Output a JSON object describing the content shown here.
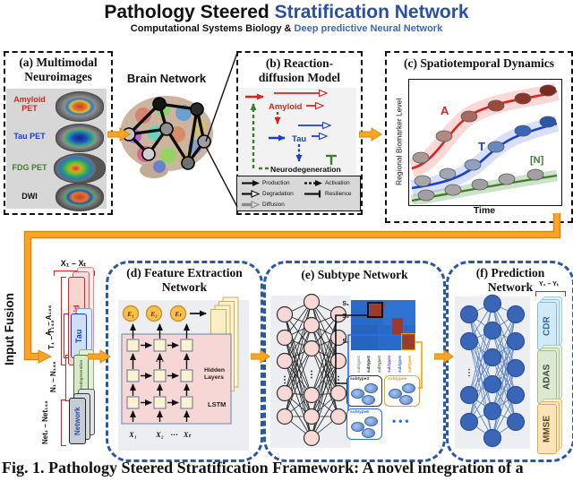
{
  "header": {
    "title_black": "Pathology Steered ",
    "title_blue": "Stratification Network",
    "subtitle_black": "Computational Systems Biology & ",
    "subtitle_blue": "Deep predictive Neural Network"
  },
  "theme": {
    "flow_arrow_color": "#fda428",
    "panel_dash_blue": "#2b57a7",
    "title_blue": "#2b4fa3"
  },
  "panel_a": {
    "title_line1": "(a) Multimodal",
    "title_line2": "Neuroimages",
    "modalities": [
      {
        "label": "Amyloid PET",
        "color": "#e02020"
      },
      {
        "label": "Tau PET",
        "color": "#1a3fd4"
      },
      {
        "label": "FDG PET",
        "color": "#3f7d2c"
      },
      {
        "label": "DWI",
        "color": "#111111"
      }
    ]
  },
  "brain_network": {
    "label": "Brain Network"
  },
  "panel_b": {
    "title_line1": "(b) Reaction-",
    "title_line2": "diffusion Model",
    "amyloid": "Amyloid",
    "tau": "Tau",
    "neuro": "Neurodegeneration",
    "legend": {
      "production": "Production",
      "degradation": "Degradation",
      "diffusion": "Diffusion",
      "activation": "Activation",
      "resilience": "Resilience"
    }
  },
  "panel_c": {
    "title": "(c) Spatiotemporal Dynamics",
    "ylabel": "Regional Biomarker Level",
    "xlabel": "Time",
    "curve_a": "A",
    "curve_t": "T",
    "curve_n": "[N]",
    "colors": {
      "a": "#e02020",
      "t": "#1a3fd4",
      "n": "#3f7d2c"
    }
  },
  "input_fusion": {
    "label": "Input Fusion",
    "x_range": "X₁ – Xₜ",
    "stack": [
      {
        "label": "Amyloid",
        "range": "A₁ – A₁₄₈"
      },
      {
        "label": "Tau",
        "range": "T₁ – T₁₄₈"
      },
      {
        "label": "Neurodegeneration",
        "range": "N₁ – N₁₄₈"
      },
      {
        "label": "Network",
        "range": "Net₁ – Net₁₄₈"
      }
    ]
  },
  "panel_d": {
    "title_line1": "(d) Feature Extraction",
    "title_line2": "Network",
    "encoders": [
      "E₁",
      "E₂",
      "Eₜ"
    ],
    "dots": "⋯",
    "hidden_label_1": "Hidden",
    "hidden_label_2": "Layers",
    "lstm_label": "LSTM",
    "inputs": [
      "X₁",
      "X₂",
      "⋯",
      "Xₜ"
    ]
  },
  "panel_e": {
    "title": "(e) Subtype Network",
    "matrix_rows": [
      "S₁",
      "S₂",
      "Sₙ"
    ],
    "vdots": "⋮",
    "subtype_ticks": [
      {
        "label": "subtype1",
        "color": "#8a8f98"
      },
      {
        "label": "subtype2",
        "color": "#202124"
      },
      {
        "label": "subtype3",
        "color": "#3f7d2c"
      },
      {
        "label": "subtype4",
        "color": "#7b3ff2"
      },
      {
        "label": "subtype5",
        "color": "#2b6cf0"
      },
      {
        "label": "subtype6",
        "color": "#f59f00"
      }
    ],
    "groups": [
      {
        "label": "subtype3",
        "color": "#333333"
      },
      {
        "label": "subtype5",
        "color": "#f59f00"
      },
      {
        "label": "subtype6",
        "color": "#2b6cf0"
      }
    ],
    "more_dots": "•••"
  },
  "panel_f": {
    "title_line1": "(f) Prediction",
    "title_line2": "Network",
    "y_range": "Y₁ – Yₜ",
    "vdots": "⋮",
    "outputs": [
      {
        "label": "CDR",
        "color": "#2b6cb0"
      },
      {
        "label": "ADAS",
        "color": "#3c4a3a"
      },
      {
        "label": "MMSE",
        "color": "#5a4a22"
      }
    ]
  },
  "caption": "Fig. 1. Pathology Steered Stratification Framework: A novel integration of a"
}
